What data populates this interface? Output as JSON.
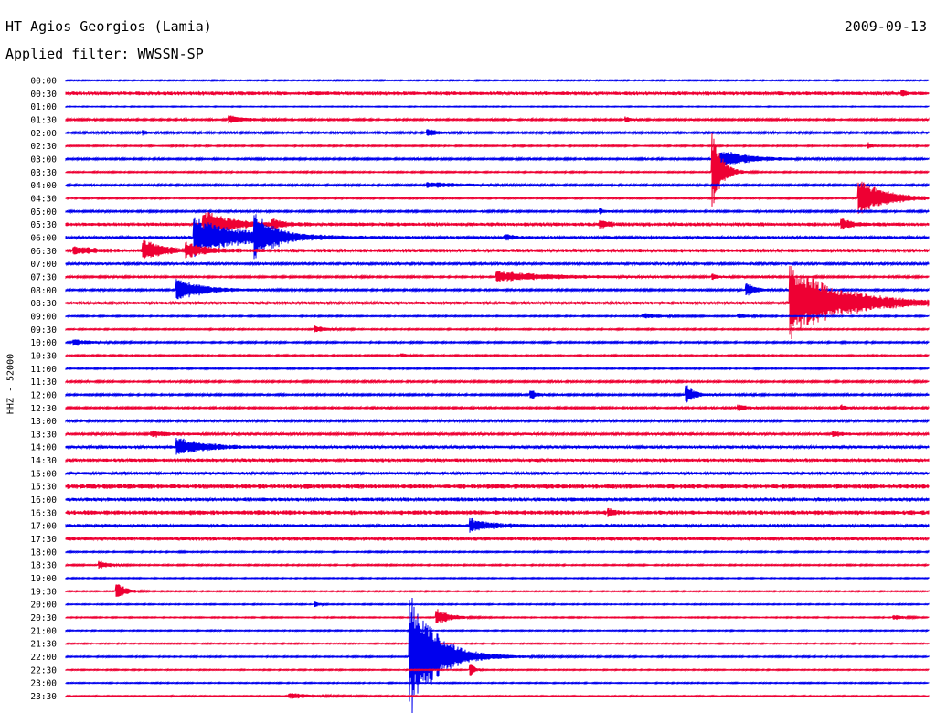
{
  "header": {
    "station": "HT Agios Georgios (Lamia)",
    "date": "2009-09-13",
    "filter_label": "Applied filter: WWSSN-SP"
  },
  "colors": {
    "trace_a": "#0000ee",
    "trace_b": "#ee0033",
    "background": "#ffffff",
    "text": "#000000"
  },
  "chart_data": {
    "type": "line",
    "ylabel": "HHZ - 52000",
    "rows": [
      "00:00",
      "00:30",
      "01:00",
      "01:30",
      "02:00",
      "02:30",
      "03:00",
      "03:30",
      "04:00",
      "04:30",
      "05:00",
      "05:30",
      "06:00",
      "06:30",
      "07:00",
      "07:30",
      "08:00",
      "08:30",
      "09:00",
      "09:30",
      "10:00",
      "10:30",
      "11:00",
      "11:30",
      "12:00",
      "12:30",
      "13:00",
      "13:30",
      "14:00",
      "14:30",
      "15:00",
      "15:30",
      "16:00",
      "16:30",
      "17:00",
      "17:30",
      "18:00",
      "18:30",
      "19:00",
      "19:30",
      "20:00",
      "20:30",
      "21:00",
      "21:30",
      "22:00",
      "22:30",
      "23:00",
      "23:30"
    ],
    "row_colors": [
      "blue",
      "red"
    ],
    "noise": [
      0.5,
      1.5,
      0.4,
      0.8,
      0.9,
      0.6,
      0.8,
      0.6,
      0.8,
      0.6,
      0.8,
      1.5,
      1.2,
      1.5,
      1.0,
      0.8,
      0.8,
      1.2,
      0.6,
      0.6,
      0.7,
      0.6,
      0.6,
      0.8,
      0.8,
      0.8,
      0.9,
      1.0,
      1.2,
      1.4,
      1.2,
      2.0,
      1.5,
      1.8,
      1.5,
      1.5,
      0.6,
      0.6,
      0.5,
      0.5,
      0.5,
      0.5,
      0.5,
      0.5,
      0.6,
      0.5,
      0.5,
      0.5
    ],
    "events": [
      {
        "row": 1,
        "pos": 0.97,
        "amp": 3,
        "dur": 0.005
      },
      {
        "row": 3,
        "pos": 0.19,
        "amp": 5,
        "dur": 0.015
      },
      {
        "row": 3,
        "pos": 0.65,
        "amp": 3,
        "dur": 0.005
      },
      {
        "row": 4,
        "pos": 0.09,
        "amp": 3,
        "dur": 0.005
      },
      {
        "row": 4,
        "pos": 0.42,
        "amp": 4,
        "dur": 0.01
      },
      {
        "row": 5,
        "pos": 0.93,
        "amp": 4,
        "dur": 0.005
      },
      {
        "row": 6,
        "pos": 0.76,
        "amp": 10,
        "dur": 0.03
      },
      {
        "row": 7,
        "pos": 0.75,
        "amp": 45,
        "dur": 0.01
      },
      {
        "row": 8,
        "pos": 0.42,
        "amp": 3,
        "dur": 0.04
      },
      {
        "row": 9,
        "pos": 0.92,
        "amp": 22,
        "dur": 0.03
      },
      {
        "row": 10,
        "pos": 0.62,
        "amp": 3,
        "dur": 0.005
      },
      {
        "row": 11,
        "pos": 0.16,
        "amp": 15,
        "dur": 0.03
      },
      {
        "row": 11,
        "pos": 0.24,
        "amp": 5,
        "dur": 0.01
      },
      {
        "row": 11,
        "pos": 0.62,
        "amp": 4,
        "dur": 0.01
      },
      {
        "row": 11,
        "pos": 0.9,
        "amp": 6,
        "dur": 0.01
      },
      {
        "row": 12,
        "pos": 0.15,
        "amp": 22,
        "dur": 0.05
      },
      {
        "row": 12,
        "pos": 0.22,
        "amp": 25,
        "dur": 0.02
      },
      {
        "row": 12,
        "pos": 0.51,
        "amp": 3,
        "dur": 0.01
      },
      {
        "row": 13,
        "pos": 0.01,
        "amp": 4,
        "dur": 0.02
      },
      {
        "row": 13,
        "pos": 0.09,
        "amp": 12,
        "dur": 0.02
      },
      {
        "row": 13,
        "pos": 0.14,
        "amp": 8,
        "dur": 0.02
      },
      {
        "row": 15,
        "pos": 0.5,
        "amp": 6,
        "dur": 0.06
      },
      {
        "row": 15,
        "pos": 0.75,
        "amp": 3,
        "dur": 0.005
      },
      {
        "row": 16,
        "pos": 0.13,
        "amp": 12,
        "dur": 0.03
      },
      {
        "row": 16,
        "pos": 0.79,
        "amp": 8,
        "dur": 0.01
      },
      {
        "row": 17,
        "pos": 0.84,
        "amp": 40,
        "dur": 0.06
      },
      {
        "row": 18,
        "pos": 0.67,
        "amp": 3,
        "dur": 0.02
      },
      {
        "row": 18,
        "pos": 0.78,
        "amp": 3,
        "dur": 0.01
      },
      {
        "row": 19,
        "pos": 0.29,
        "amp": 4,
        "dur": 0.01
      },
      {
        "row": 20,
        "pos": 0.01,
        "amp": 3,
        "dur": 0.02
      },
      {
        "row": 21,
        "pos": 0.39,
        "amp": 3,
        "dur": 0.005
      },
      {
        "row": 24,
        "pos": 0.54,
        "amp": 6,
        "dur": 0.005
      },
      {
        "row": 24,
        "pos": 0.72,
        "amp": 10,
        "dur": 0.01
      },
      {
        "row": 25,
        "pos": 0.78,
        "amp": 4,
        "dur": 0.01
      },
      {
        "row": 25,
        "pos": 0.9,
        "amp": 3,
        "dur": 0.005
      },
      {
        "row": 27,
        "pos": 0.1,
        "amp": 3,
        "dur": 0.02
      },
      {
        "row": 27,
        "pos": 0.89,
        "amp": 3,
        "dur": 0.01
      },
      {
        "row": 28,
        "pos": 0.13,
        "amp": 10,
        "dur": 0.03
      },
      {
        "row": 33,
        "pos": 0.63,
        "amp": 4,
        "dur": 0.005
      },
      {
        "row": 34,
        "pos": 0.47,
        "amp": 7,
        "dur": 0.02
      },
      {
        "row": 37,
        "pos": 0.04,
        "amp": 5,
        "dur": 0.01
      },
      {
        "row": 39,
        "pos": 0.06,
        "amp": 10,
        "dur": 0.01
      },
      {
        "row": 40,
        "pos": 0.29,
        "amp": 3,
        "dur": 0.005
      },
      {
        "row": 41,
        "pos": 0.43,
        "amp": 10,
        "dur": 0.015
      },
      {
        "row": 41,
        "pos": 0.96,
        "amp": 3,
        "dur": 0.01
      },
      {
        "row": 44,
        "pos": 0.4,
        "amp": 70,
        "dur": 0.03
      },
      {
        "row": 45,
        "pos": 0.47,
        "amp": 7,
        "dur": 0.005
      },
      {
        "row": 47,
        "pos": 0.26,
        "amp": 3,
        "dur": 0.03
      }
    ]
  }
}
